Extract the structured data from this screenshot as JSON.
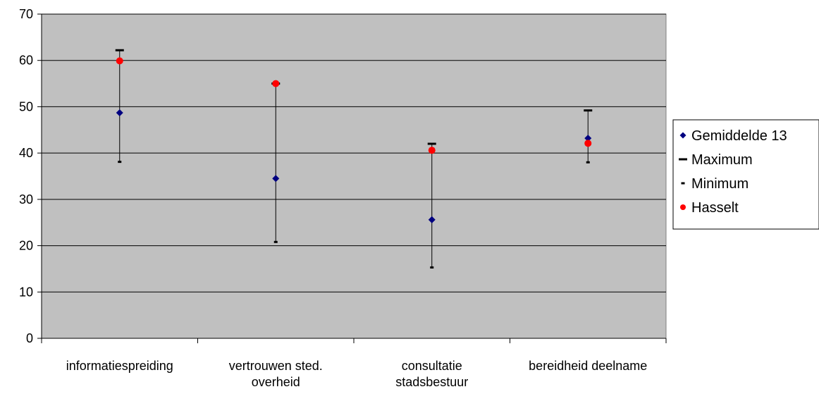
{
  "chart_data": {
    "type": "scatter",
    "title": "",
    "xlabel": "",
    "ylabel": "",
    "categories": [
      [
        "informatiespreiding"
      ],
      [
        "vertrouwen sted.",
        "overheid"
      ],
      [
        "consultatie",
        "stadsbestuur"
      ],
      [
        "bereidheid deelname"
      ]
    ],
    "ylim": [
      0,
      70
    ],
    "yticks": [
      "0",
      "10",
      "20",
      "30",
      "40",
      "50",
      "60",
      "70"
    ],
    "grid": true,
    "legend_position": "right",
    "series": [
      {
        "name": "Gemiddelde 13",
        "marker": "diamond",
        "color": "#000080",
        "values": [
          48.7,
          34.5,
          25.6,
          43.2
        ]
      },
      {
        "name": "Maximum",
        "marker": "dash",
        "color": "#000000",
        "values": [
          62.2,
          55.0,
          42.0,
          49.2
        ]
      },
      {
        "name": "Minimum",
        "marker": "small-dash",
        "color": "#000000",
        "values": [
          38.1,
          20.8,
          15.3,
          38.0
        ]
      },
      {
        "name": "Hasselt",
        "marker": "circle",
        "color": "#ff0000",
        "values": [
          59.9,
          55.0,
          40.6,
          42.1
        ]
      }
    ],
    "colors": {
      "plot_background": "#c0c0c0",
      "gridline": "#000000"
    }
  }
}
